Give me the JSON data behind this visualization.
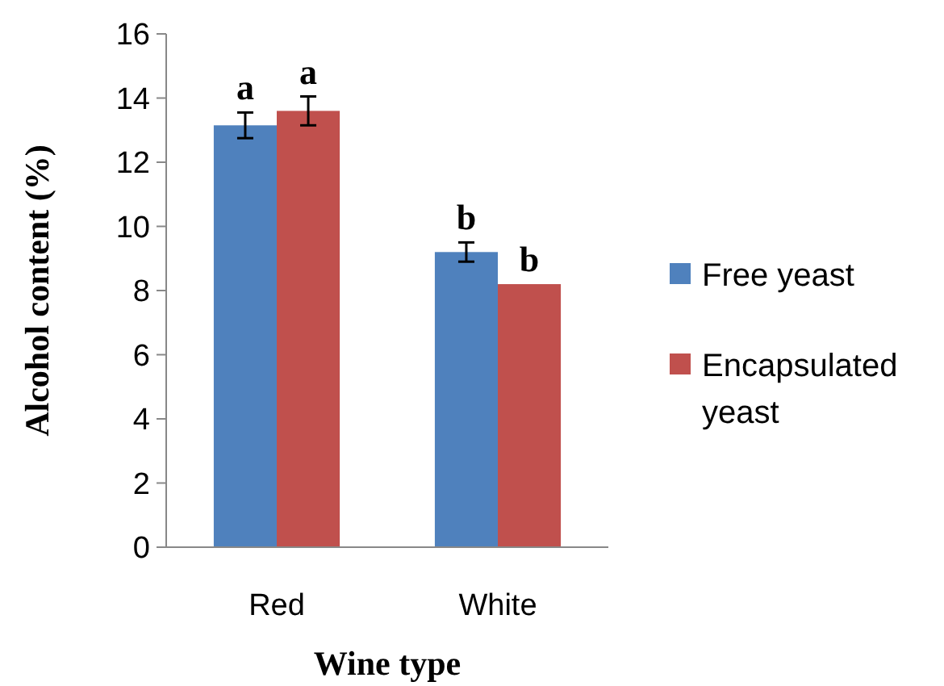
{
  "chart_data": {
    "type": "bar",
    "xlabel": "Wine type",
    "ylabel": "Alcohol content (%)",
    "categories": [
      "Red",
      "White"
    ],
    "series": [
      {
        "name": "Free yeast",
        "color": "#4f81bd",
        "values": [
          13.15,
          9.2
        ],
        "errors": [
          0.4,
          0.3
        ],
        "value_labels": [
          "a",
          "b"
        ]
      },
      {
        "name": "Encapsulated yeast",
        "color": "#c0504d",
        "values": [
          13.6,
          8.2
        ],
        "errors": [
          0.45,
          null
        ],
        "value_labels": [
          "a",
          "b"
        ]
      }
    ],
    "ylim": [
      0,
      16
    ],
    "yticks": [
      0,
      2,
      4,
      6,
      8,
      10,
      12,
      14,
      16
    ],
    "legend": "right"
  }
}
